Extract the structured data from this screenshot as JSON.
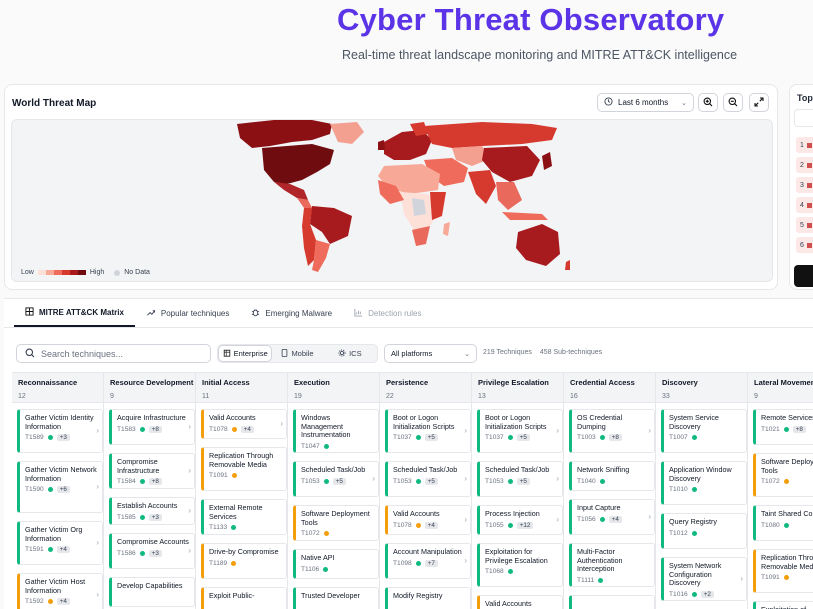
{
  "header": {
    "title": "Cyber Threat Observatory",
    "subtitle": "Real-time threat landscape monitoring and MITRE ATT&CK intelligence"
  },
  "map": {
    "title": "World Threat Map",
    "period": "Last 6 months",
    "legend_low": "Low",
    "legend_high": "High",
    "legend_nodata": "No Data",
    "scale_colors": [
      "#fde0d8",
      "#f7a897",
      "#ef6b5b",
      "#d63a2f",
      "#a71a1e",
      "#6e0c10"
    ]
  },
  "side_panel": {
    "title": "Top",
    "ranks": [
      "1",
      "2",
      "3",
      "4",
      "5",
      "6"
    ]
  },
  "tabs": [
    {
      "label": "MITRE ATT&CK Matrix",
      "icon": "grid-icon",
      "state": "active"
    },
    {
      "label": "Popular techniques",
      "icon": "trending-icon",
      "state": "normal"
    },
    {
      "label": "Emerging Malware",
      "icon": "bug-icon",
      "state": "normal"
    },
    {
      "label": "Detection rules",
      "icon": "chart-icon",
      "state": "disabled"
    }
  ],
  "toolbar": {
    "search_placeholder": "Search techniques...",
    "segments": [
      {
        "label": "Enterprise",
        "icon": "building-icon",
        "active": true
      },
      {
        "label": "Mobile",
        "icon": "phone-icon",
        "active": false
      },
      {
        "label": "ICS",
        "icon": "cog-icon",
        "active": false
      }
    ],
    "platform": "All platforms",
    "techniques_count": "219 Techniques",
    "subtechniques_count": "458 Sub-techniques"
  },
  "matrix": [
    {
      "name": "Reconnaissance",
      "count": "12",
      "items": [
        {
          "name": "Gather Victim Identity Information",
          "id": "T1589",
          "badge": "+3",
          "color": "green"
        },
        {
          "name": "Gather Victim Network Information",
          "id": "T1590",
          "badge": "+6",
          "color": "green"
        },
        {
          "name": "Gather Victim Org Information",
          "id": "T1591",
          "badge": "+4",
          "color": "green"
        },
        {
          "name": "Gather Victim Host Information",
          "id": "T1592",
          "badge": "+4",
          "color": "orange"
        }
      ]
    },
    {
      "name": "Resource Development",
      "count": "9",
      "items": [
        {
          "name": "Acquire Infrastructure",
          "id": "T1583",
          "badge": "+8",
          "color": "green"
        },
        {
          "name": "Compromise Infrastructure",
          "id": "T1584",
          "badge": "+8",
          "color": "green"
        },
        {
          "name": "Establish Accounts",
          "id": "T1585",
          "badge": "+3",
          "color": "green"
        },
        {
          "name": "Compromise Accounts",
          "id": "T1586",
          "badge": "+3",
          "color": "green"
        },
        {
          "name": "Develop Capabilities",
          "id": "",
          "badge": "",
          "color": "green"
        }
      ]
    },
    {
      "name": "Initial Access",
      "count": "11",
      "items": [
        {
          "name": "Valid Accounts",
          "id": "T1078",
          "badge": "+4",
          "color": "orange"
        },
        {
          "name": "Replication Through Removable Media",
          "id": "T1091",
          "badge": "",
          "color": "orange"
        },
        {
          "name": "External Remote Services",
          "id": "T1133",
          "badge": "",
          "color": "green"
        },
        {
          "name": "Drive-by Compromise",
          "id": "T1189",
          "badge": "",
          "color": "orange"
        },
        {
          "name": "Exploit Public-",
          "id": "",
          "badge": "",
          "color": "orange"
        }
      ]
    },
    {
      "name": "Execution",
      "count": "19",
      "items": [
        {
          "name": "Windows Management Instrumentation",
          "id": "T1047",
          "badge": "",
          "color": "green"
        },
        {
          "name": "Scheduled Task/Job",
          "id": "T1053",
          "badge": "+5",
          "color": "green"
        },
        {
          "name": "Software Deployment Tools",
          "id": "T1072",
          "badge": "",
          "color": "orange"
        },
        {
          "name": "Native API",
          "id": "T1106",
          "badge": "",
          "color": "green"
        },
        {
          "name": "Trusted Developer",
          "id": "",
          "badge": "",
          "color": "green"
        }
      ]
    },
    {
      "name": "Persistence",
      "count": "22",
      "items": [
        {
          "name": "Boot or Logon Initialization Scripts",
          "id": "T1037",
          "badge": "+5",
          "color": "green"
        },
        {
          "name": "Scheduled Task/Job",
          "id": "T1053",
          "badge": "+5",
          "color": "green"
        },
        {
          "name": "Valid Accounts",
          "id": "T1078",
          "badge": "+4",
          "color": "orange"
        },
        {
          "name": "Account Manipulation",
          "id": "T1098",
          "badge": "+7",
          "color": "green"
        },
        {
          "name": "Modify Registry",
          "id": "",
          "badge": "",
          "color": "green"
        }
      ]
    },
    {
      "name": "Privilege Escalation",
      "count": "13",
      "items": [
        {
          "name": "Boot or Logon Initialization Scripts",
          "id": "T1037",
          "badge": "+5",
          "color": "green"
        },
        {
          "name": "Scheduled Task/Job",
          "id": "T1053",
          "badge": "+5",
          "color": "green"
        },
        {
          "name": "Process Injection",
          "id": "T1055",
          "badge": "+12",
          "color": "green"
        },
        {
          "name": "Exploitation for Privilege Escalation",
          "id": "T1068",
          "badge": "",
          "color": "green"
        },
        {
          "name": "Valid Accounts",
          "id": "",
          "badge": "",
          "color": "orange"
        }
      ]
    },
    {
      "name": "Credential Access",
      "count": "16",
      "items": [
        {
          "name": "OS Credential Dumping",
          "id": "T1003",
          "badge": "+8",
          "color": "green"
        },
        {
          "name": "Network Sniffing",
          "id": "T1040",
          "badge": "",
          "color": "green"
        },
        {
          "name": "Input Capture",
          "id": "T1056",
          "badge": "+4",
          "color": "green"
        },
        {
          "name": "Multi-Factor Authentication Interception",
          "id": "T1111",
          "badge": "",
          "color": "green"
        },
        {
          "name": "",
          "id": "",
          "badge": "",
          "color": "green"
        }
      ]
    },
    {
      "name": "Discovery",
      "count": "33",
      "items": [
        {
          "name": "System Service Discovery",
          "id": "T1007",
          "badge": "",
          "color": "green"
        },
        {
          "name": "Application Window Discovery",
          "id": "T1010",
          "badge": "",
          "color": "green"
        },
        {
          "name": "Query Registry",
          "id": "T1012",
          "badge": "",
          "color": "green"
        },
        {
          "name": "System Network Configuration Discovery",
          "id": "T1016",
          "badge": "+2",
          "color": "green"
        }
      ]
    },
    {
      "name": "Lateral Movement",
      "count": "9",
      "items": [
        {
          "name": "Remote Services",
          "id": "T1021",
          "badge": "+8",
          "color": "green"
        },
        {
          "name": "Software Deployment Tools",
          "id": "T1072",
          "badge": "",
          "color": "orange"
        },
        {
          "name": "Taint Shared Content",
          "id": "T1080",
          "badge": "",
          "color": "green"
        },
        {
          "name": "Replication Through Removable Media",
          "id": "T1091",
          "badge": "",
          "color": "orange"
        },
        {
          "name": "Exploitation of",
          "id": "",
          "badge": "",
          "color": "green"
        }
      ]
    }
  ]
}
